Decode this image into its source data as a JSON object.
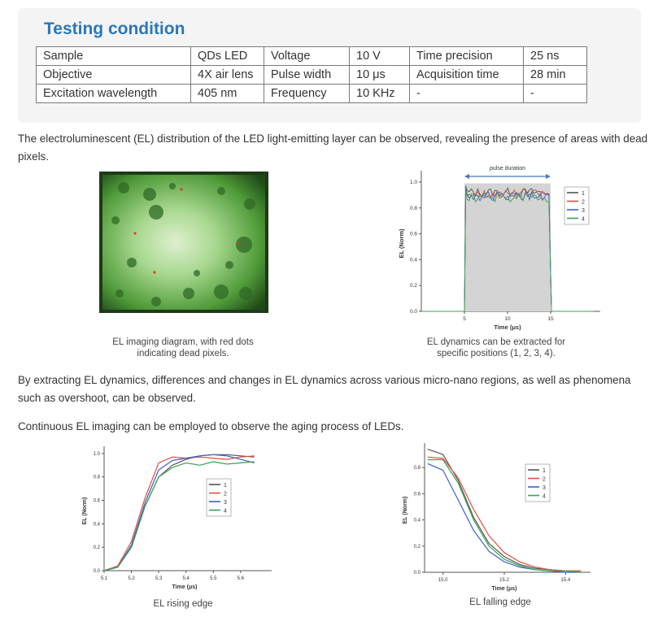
{
  "section": {
    "title": "Testing condition"
  },
  "table": {
    "rows": [
      [
        "Sample",
        "QDs LED",
        "Voltage",
        "10 V",
        "Time precision",
        "25 ns"
      ],
      [
        "Objective",
        "4X air lens",
        "Pulse width",
        "10 μs",
        "Acquisition time",
        "28 min"
      ],
      [
        "Excitation wavelength",
        "405 nm",
        "Frequency",
        "10 KHz",
        "-",
        "-"
      ]
    ]
  },
  "paragraphs": {
    "p1": "The electroluminescent (EL) distribution of the LED light-emitting layer can be observed, revealing the presence of areas with dead pixels.",
    "p2": "By extracting EL dynamics, differences and changes in EL dynamics across various micro-nano regions, as well as phenomena such as overshoot, can be observed.",
    "p3": "Continuous EL imaging can be employed to observe the aging process of LEDs."
  },
  "captions": {
    "imaging": "EL imaging diagram, with red dots indicating dead pixels.",
    "dynamics": "EL dynamics can be extracted for specific positions (1, 2, 3, 4).",
    "rising": "EL rising edge",
    "falling": "EL falling edge"
  },
  "colors": {
    "s1": "#555555",
    "s2": "#e0503c",
    "s3": "#3b5fc8",
    "s4": "#3aa05a",
    "title": "#2a78b8"
  },
  "chart_data": [
    {
      "type": "line",
      "annotation": "pulse duration",
      "xlabel": "Time (μs)",
      "ylabel": "EL (Norm)",
      "xlim": [
        0,
        20
      ],
      "ylim": [
        0,
        1.05
      ],
      "xticks": [
        "5",
        "10",
        "15"
      ],
      "yticks": [
        "0.0",
        "0.2",
        "0.4",
        "0.6",
        "0.8",
        "1.0"
      ],
      "series": [
        {
          "name": "1",
          "plateau": 0.92
        },
        {
          "name": "2",
          "plateau": 0.91
        },
        {
          "name": "3",
          "plateau": 0.89
        },
        {
          "name": "4",
          "plateau": 0.88
        }
      ],
      "pulse_start": 5,
      "pulse_end": 15,
      "legend": "top-right"
    },
    {
      "type": "line",
      "xlabel": "Time (μs)",
      "ylabel": "EL (Norm)",
      "xticks": [
        "5.1",
        "5.2",
        "5.3",
        "5.4",
        "5.5",
        "5.6"
      ],
      "yticks": [
        "0.0",
        "0.2",
        "0.4",
        "0.6",
        "0.8",
        "1.0"
      ],
      "x": [
        5.1,
        5.15,
        5.2,
        5.25,
        5.3,
        5.35,
        5.4,
        5.45,
        5.5,
        5.55,
        5.6,
        5.65
      ],
      "series": [
        {
          "name": "1",
          "values": [
            0.0,
            0.03,
            0.2,
            0.55,
            0.8,
            0.9,
            0.95,
            0.98,
            0.99,
            0.99,
            0.98,
            0.97
          ]
        },
        {
          "name": "2",
          "values": [
            0.0,
            0.04,
            0.25,
            0.62,
            0.92,
            0.97,
            0.96,
            0.97,
            0.96,
            0.95,
            0.97,
            0.98
          ]
        },
        {
          "name": "3",
          "values": [
            0.0,
            0.03,
            0.22,
            0.58,
            0.86,
            0.94,
            0.96,
            0.98,
            0.99,
            0.98,
            0.95,
            0.92
          ]
        },
        {
          "name": "4",
          "values": [
            0.0,
            0.03,
            0.2,
            0.55,
            0.8,
            0.88,
            0.92,
            0.9,
            0.93,
            0.91,
            0.92,
            0.93
          ]
        }
      ],
      "legend": "center-right"
    },
    {
      "type": "line",
      "xlabel": "Time (μs)",
      "ylabel": "EL (Norm)",
      "xticks": [
        "15.0",
        "15.2",
        "15.4"
      ],
      "yticks": [
        "0.0",
        "0.2",
        "0.4",
        "0.6",
        "0.8"
      ],
      "x": [
        14.95,
        15.0,
        15.05,
        15.1,
        15.15,
        15.2,
        15.25,
        15.3,
        15.35,
        15.4,
        15.45
      ],
      "series": [
        {
          "name": "1",
          "values": [
            0.94,
            0.9,
            0.7,
            0.42,
            0.22,
            0.12,
            0.06,
            0.03,
            0.02,
            0.01,
            0.01
          ]
        },
        {
          "name": "2",
          "values": [
            0.88,
            0.87,
            0.72,
            0.48,
            0.28,
            0.15,
            0.08,
            0.04,
            0.02,
            0.01,
            0.01
          ]
        },
        {
          "name": "3",
          "values": [
            0.83,
            0.78,
            0.55,
            0.32,
            0.16,
            0.08,
            0.04,
            0.02,
            0.01,
            0.0,
            0.0
          ]
        },
        {
          "name": "4",
          "values": [
            0.86,
            0.86,
            0.68,
            0.4,
            0.2,
            0.1,
            0.05,
            0.02,
            0.01,
            0.01,
            0.0
          ]
        }
      ],
      "legend": "center-right"
    }
  ]
}
